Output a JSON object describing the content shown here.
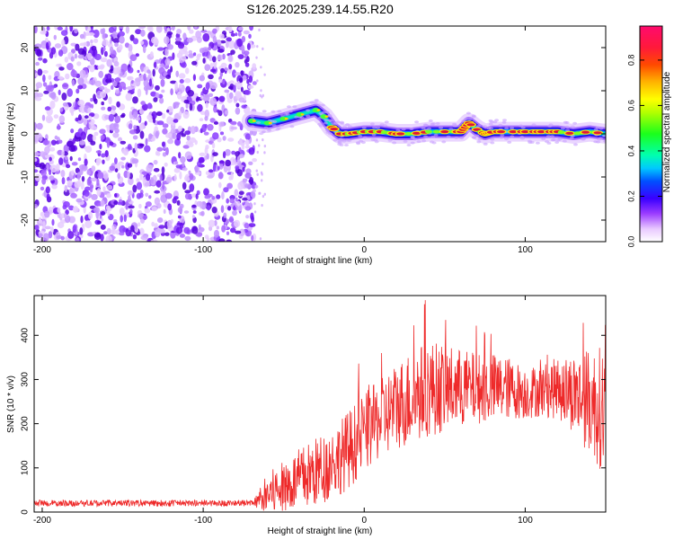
{
  "title": "S126.2025.239.14.55.R20",
  "colors": {
    "snr_line": "#ee2a2a",
    "speckle": "#7a1cf0",
    "track_core": "#e0153a",
    "axis": "#000000"
  },
  "colorbar": {
    "label": "Normalized spectral amplitude",
    "ticks": [
      "0.0",
      "0.2",
      "0.4",
      "0.6",
      "0.8"
    ],
    "tick_values": [
      0.0,
      0.2,
      0.4,
      0.6,
      0.8
    ],
    "range": [
      0.0,
      0.95
    ]
  },
  "chart_data": [
    {
      "type": "heatmap",
      "name": "spectrogram",
      "title": "S126.2025.239.14.55.R20",
      "xlabel": "Height of straight line (km)",
      "ylabel": "Frequency (Hz)",
      "xlim": [
        -205,
        150
      ],
      "ylim": [
        -25,
        25
      ],
      "xticks": [
        -200,
        -100,
        0,
        100
      ],
      "xtick_labels": [
        "-200",
        "-100",
        "0",
        "100"
      ],
      "yticks": [
        -20,
        -10,
        0,
        10,
        20
      ],
      "ytick_labels": [
        "-20",
        "-10",
        "0",
        "10",
        "20"
      ],
      "noise_region_x": [
        -205,
        -68
      ],
      "track": {
        "x": [
          -70,
          -60,
          -50,
          -40,
          -30,
          -25,
          -20,
          -15,
          -10,
          0,
          10,
          20,
          30,
          40,
          50,
          60,
          65,
          70,
          75,
          80,
          90,
          100,
          110,
          120,
          130,
          140,
          150
        ],
        "frequency": [
          3,
          2.5,
          3.5,
          4.5,
          5.5,
          4,
          1.5,
          0,
          0,
          0.5,
          0.5,
          0,
          0,
          0.5,
          0.5,
          0.5,
          2.5,
          1,
          0,
          0.5,
          0.5,
          0.5,
          0.5,
          0.5,
          0,
          0.5,
          0
        ]
      }
    },
    {
      "type": "line",
      "name": "snr",
      "xlabel": "Height of straight line (km)",
      "ylabel": "SNR (10 * v/v)",
      "xlim": [
        -205,
        150
      ],
      "ylim": [
        0,
        490
      ],
      "xticks": [
        -200,
        -100,
        0,
        100
      ],
      "xtick_labels": [
        "-200",
        "-100",
        "0",
        "100"
      ],
      "yticks": [
        0,
        100,
        200,
        300,
        400
      ],
      "ytick_labels": [
        "0",
        "100",
        "200",
        "300",
        "400"
      ],
      "series": [
        {
          "name": "SNR",
          "x": [
            -205,
            -150,
            -100,
            -68,
            -60,
            -50,
            -40,
            -30,
            -20,
            -10,
            0,
            10,
            20,
            30,
            40,
            50,
            60,
            70,
            80,
            90,
            100,
            110,
            120,
            130,
            140,
            150
          ],
          "baseline": [
            20,
            20,
            20,
            20,
            40,
            55,
            75,
            90,
            110,
            140,
            180,
            210,
            240,
            260,
            280,
            280,
            280,
            280,
            280,
            280,
            270,
            275,
            280,
            270,
            250,
            230
          ],
          "noise_amplitude": [
            12,
            12,
            12,
            12,
            50,
            60,
            70,
            80,
            80,
            90,
            90,
            90,
            100,
            110,
            110,
            100,
            90,
            80,
            80,
            70,
            60,
            60,
            70,
            90,
            120,
            150
          ]
        }
      ]
    }
  ]
}
